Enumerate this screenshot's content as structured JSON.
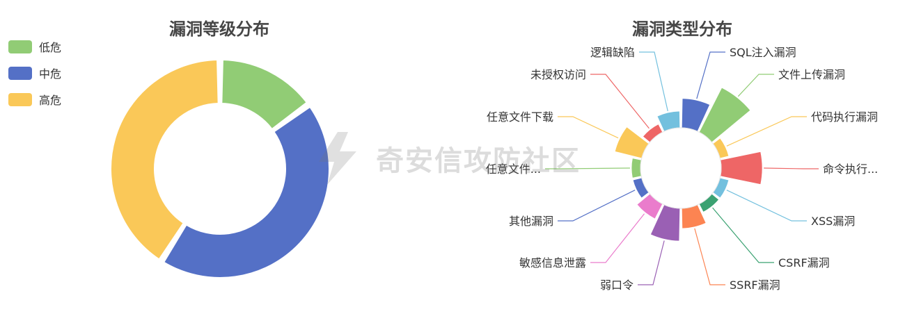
{
  "chart_data": [
    {
      "type": "pie",
      "variant": "donut",
      "title": "漏洞等级分布",
      "legend_placement": "top-left",
      "slices": [
        {
          "name": "低危",
          "value": 15,
          "color": "#91cc75"
        },
        {
          "name": "中危",
          "value": 44,
          "color": "#5470c6"
        },
        {
          "name": "高危",
          "value": 41,
          "color": "#fac858"
        }
      ]
    },
    {
      "type": "pie",
      "variant": "rose",
      "title": "漏洞类型分布",
      "slices": [
        {
          "name": "SQL注入漏洞",
          "value": 4,
          "color": "#5470c6"
        },
        {
          "name": "文件上传漏洞",
          "value": 12,
          "color": "#91cc75"
        },
        {
          "name": "代码执行漏洞",
          "value": 0.3,
          "color": "#fac858"
        },
        {
          "name": "命令执行...",
          "value": 8,
          "color": "#ee6666"
        },
        {
          "name": "XSS漏洞",
          "value": 0.3,
          "color": "#73c0de"
        },
        {
          "name": "CSRF漏洞",
          "value": 0.3,
          "color": "#3ba272"
        },
        {
          "name": "SSRF漏洞",
          "value": 1.8,
          "color": "#fc8452"
        },
        {
          "name": "弱口令",
          "value": 5,
          "color": "#9a60b4"
        },
        {
          "name": "敏感信息泄露",
          "value": 1.2,
          "color": "#ea7ccc"
        },
        {
          "name": "其他漏洞",
          "value": 0.3,
          "color": "#5470c6"
        },
        {
          "name": "任意文件...",
          "value": 0.3,
          "color": "#91cc75"
        },
        {
          "name": "任意文件下载",
          "value": 3.5,
          "color": "#fac858"
        },
        {
          "name": "未授权访问",
          "value": 0.3,
          "color": "#ee6666"
        },
        {
          "name": "逻辑缺陷",
          "value": 1.2,
          "color": "#73c0de"
        }
      ]
    }
  ],
  "watermark": {
    "text": "奇安信攻防社区",
    "logo": "lightning-logo-icon"
  }
}
